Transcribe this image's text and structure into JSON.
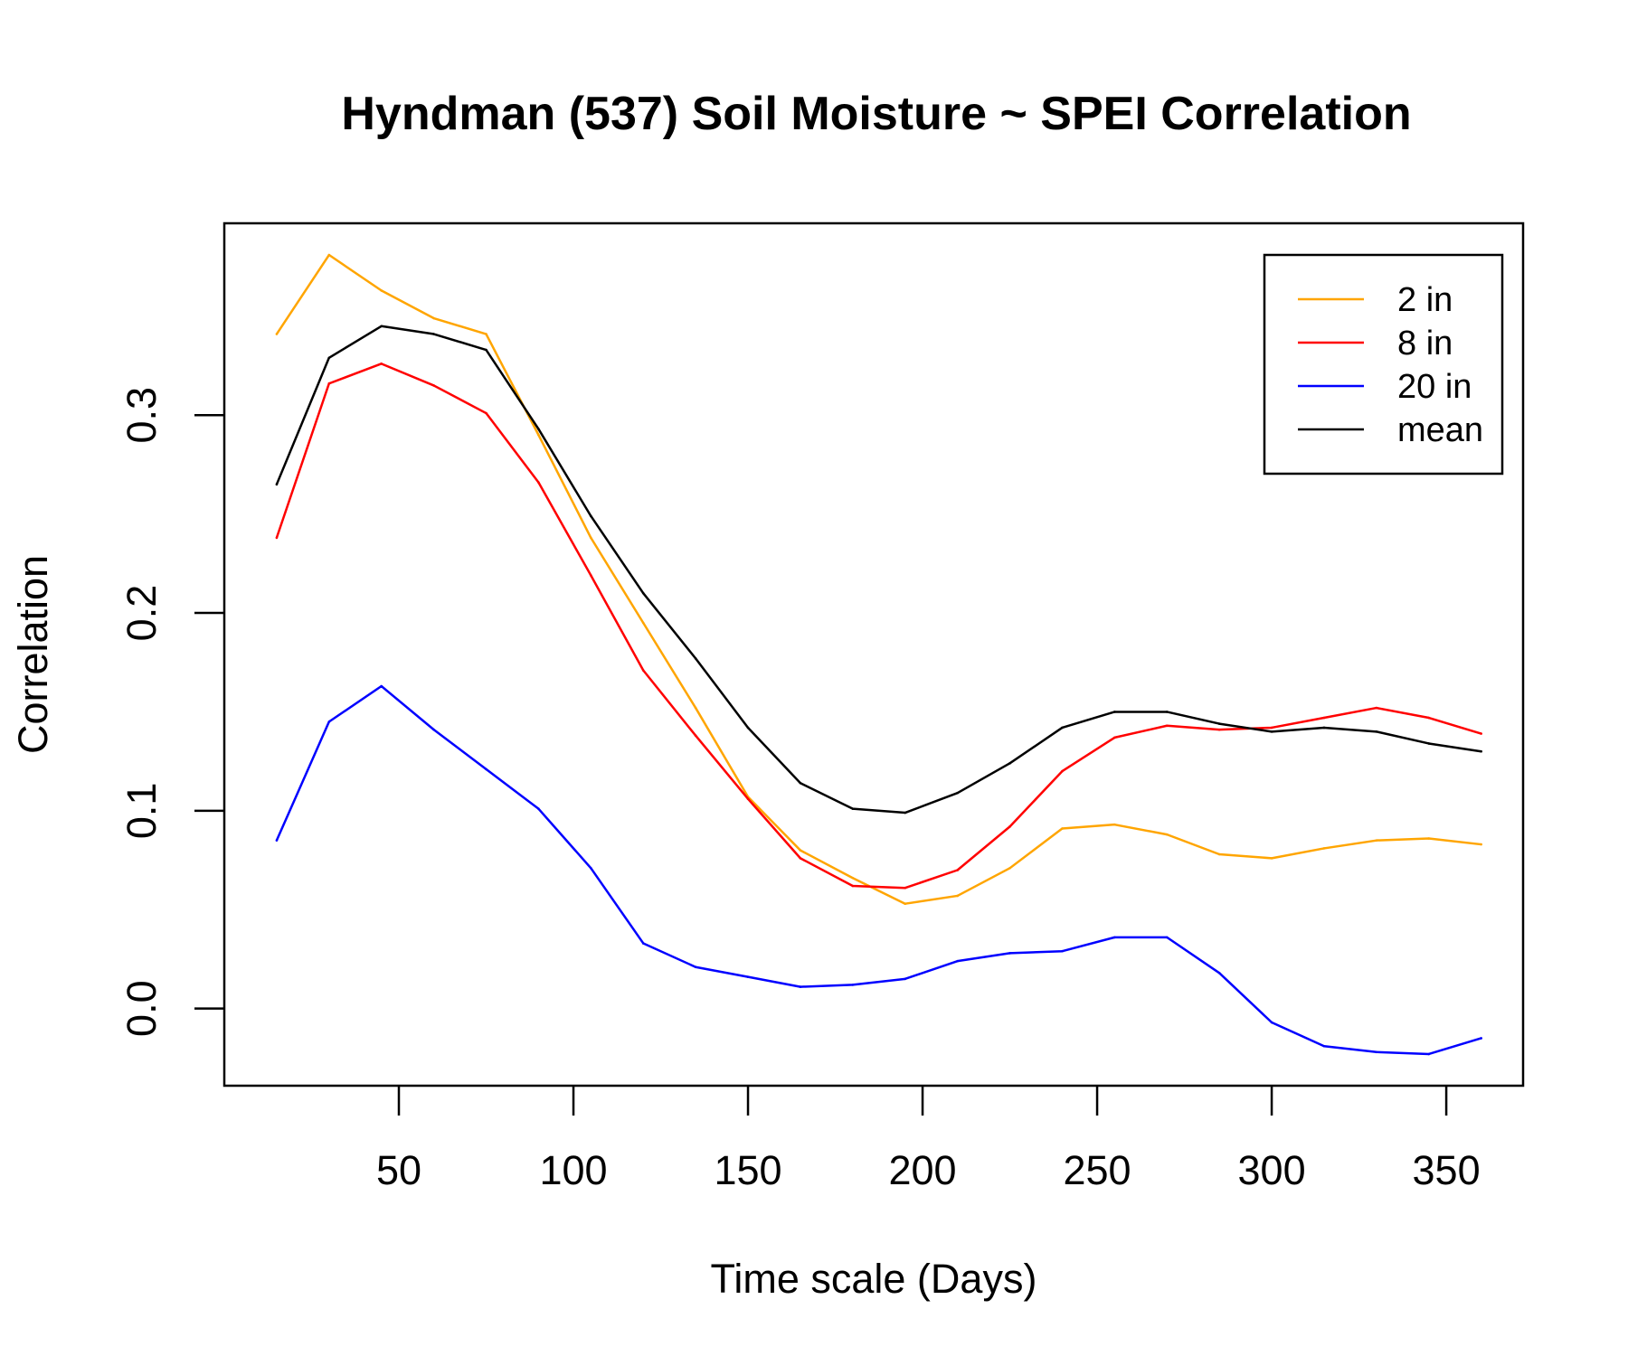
{
  "chart_data": {
    "type": "line",
    "title": "Hyndman (537) Soil Moisture ~ SPEI Correlation",
    "xlabel": "Time scale (Days)",
    "ylabel": "Correlation",
    "xlim": [
      0,
      372
    ],
    "ylim": [
      -0.039,
      0.397
    ],
    "x_ticks": [
      50,
      100,
      150,
      200,
      250,
      300,
      350
    ],
    "y_ticks": [
      0.0,
      0.1,
      0.2,
      0.3
    ],
    "x_tick_labels": [
      "50",
      "100",
      "150",
      "200",
      "250",
      "300",
      "350"
    ],
    "y_tick_labels": [
      "0.0",
      "0.1",
      "0.2",
      "0.3"
    ],
    "grid": false,
    "legend_position": "top-right",
    "x": [
      15,
      30,
      45,
      60,
      75,
      90,
      105,
      120,
      135,
      150,
      165,
      180,
      195,
      210,
      225,
      240,
      255,
      270,
      285,
      300,
      315,
      330,
      345,
      360
    ],
    "series": [
      {
        "name": "2 in",
        "color": "#FFA500",
        "values": [
          0.341,
          0.381,
          0.363,
          0.349,
          0.341,
          0.29,
          0.238,
          0.195,
          0.152,
          0.107,
          0.08,
          0.066,
          0.053,
          0.057,
          0.071,
          0.091,
          0.093,
          0.088,
          0.078,
          0.076,
          0.081,
          0.085,
          0.086,
          0.083
        ]
      },
      {
        "name": "8 in",
        "color": "#FF0000",
        "values": [
          0.238,
          0.316,
          0.326,
          0.315,
          0.301,
          0.266,
          0.219,
          0.171,
          0.138,
          0.106,
          0.076,
          0.062,
          0.061,
          0.07,
          0.092,
          0.12,
          0.137,
          0.143,
          0.141,
          0.142,
          0.147,
          0.152,
          0.147,
          0.139
        ]
      },
      {
        "name": "20 in",
        "color": "#0000FF",
        "values": [
          0.085,
          0.145,
          0.163,
          0.141,
          0.121,
          0.101,
          0.071,
          0.033,
          0.021,
          0.016,
          0.011,
          0.012,
          0.015,
          0.024,
          0.028,
          0.029,
          0.036,
          0.036,
          0.018,
          -0.007,
          -0.019,
          -0.022,
          -0.023,
          -0.015
        ]
      },
      {
        "name": "mean",
        "color": "#000000",
        "values": [
          0.265,
          0.329,
          0.345,
          0.341,
          0.333,
          0.293,
          0.249,
          0.21,
          0.177,
          0.142,
          0.114,
          0.101,
          0.099,
          0.109,
          0.124,
          0.142,
          0.15,
          0.15,
          0.144,
          0.14,
          0.142,
          0.14,
          0.134,
          0.13
        ]
      }
    ]
  }
}
